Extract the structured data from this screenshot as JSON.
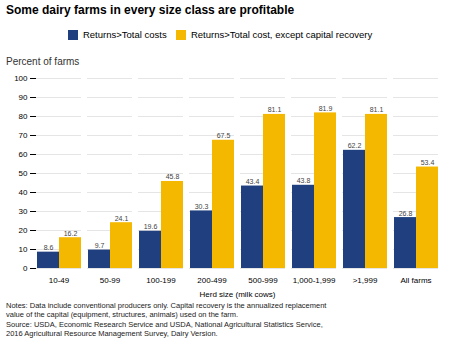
{
  "chart_data": {
    "type": "bar",
    "title": "Some dairy farms in every size class are profitable",
    "ylabel": "Percent of farms",
    "xlabel": "Herd size (milk cows)",
    "categories": [
      "10-49",
      "50-99",
      "100-199",
      "200-499",
      "500-999",
      "1,000-1,999",
      ">1,999",
      "All farms"
    ],
    "series": [
      {
        "name": "Returns>Total costs",
        "color": "#1F3F7F",
        "values": [
          8.6,
          9.7,
          19.6,
          30.3,
          43.4,
          43.8,
          62.2,
          26.8
        ]
      },
      {
        "name": "Returns>Total cost, except capital recovery",
        "color": "#F5B800",
        "values": [
          16.2,
          24.1,
          45.8,
          67.5,
          81.1,
          81.9,
          81.1,
          53.4
        ]
      }
    ],
    "ylim": [
      0,
      100
    ],
    "yticks": [
      0,
      10,
      20,
      30,
      40,
      50,
      60,
      70,
      80,
      90,
      100
    ],
    "grid": true,
    "data_labels": true,
    "legend": "top",
    "notes": "Notes: Data include conventional producers only. Capital recovery is the annualized replacement\nvalue of the capital (equipment, structures, animals) used on the farm.\nSource: USDA, Economic Research Service and USDA, National Agricultural Statistics Service,\n2016 Agricultural Resource Management Survey, Dairy Version."
  }
}
